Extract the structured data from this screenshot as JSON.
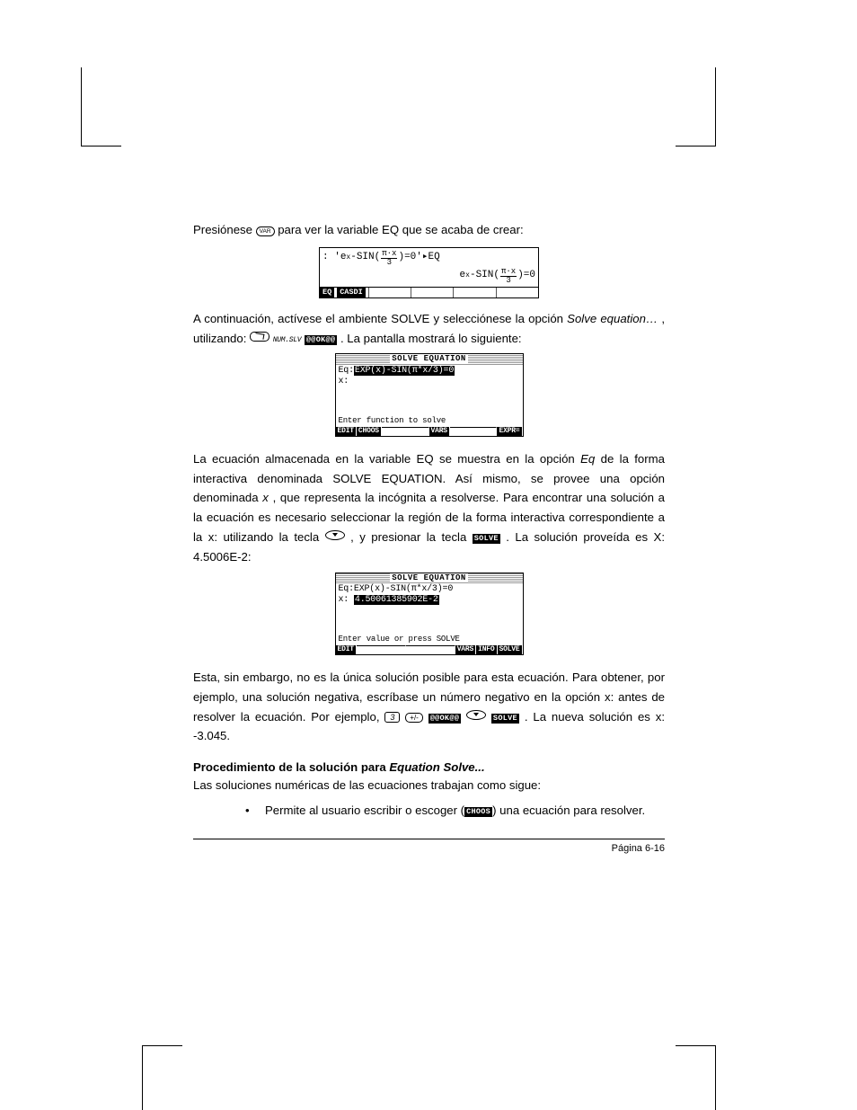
{
  "page_number": "Página 6-16",
  "colors": {
    "text": "#000000",
    "bg": "#ffffff"
  },
  "font": {
    "body_size_pt": 10,
    "family": "Verdana"
  },
  "p1": {
    "pre": "Presiónese ",
    "key": "VAR",
    "post": " para ver la variable EQ que se acaba de crear:"
  },
  "calc1": {
    "row1_lead": ": '",
    "row1_e": "e",
    "row1_sin": "-SIN",
    "row1_frac_num": "π·x",
    "row1_frac_den": "3",
    "row1_tail": "=0'▸EQ",
    "row2_e": "e",
    "row2_sin": "-SIN",
    "row2_frac_num": "π·x",
    "row2_frac_den": "3",
    "row2_tail": "=0",
    "menu": [
      "EQ",
      "CASDI"
    ]
  },
  "p2": {
    "t1": "A continuación, actívese el ambiente SOLVE y selecciónese la opción ",
    "solve": "Solve equation…",
    "t2": ", utilizando:  ",
    "numslv": "NUM.SLV",
    "ok": "@@OK@@",
    "t3": ". La pantalla mostrará lo siguiente:"
  },
  "calc2": {
    "title": "SOLVE EQUATION",
    "eq_label": "Eq:",
    "eq_value": "EXP(x)-SIN(π*x/3)=0",
    "x_label": "x:",
    "help": "Enter function to solve",
    "menu": [
      "EDIT",
      "CHOOS",
      "",
      "VARS",
      "",
      "EXPR="
    ]
  },
  "p3": {
    "t1": "La ecuación almacenada en la variable EQ se muestra en la opción ",
    "eq": "Eq",
    "t2": " de la forma interactiva denominada SOLVE EQUATION.  Así mismo, se provee una opción denominada ",
    "x": "x",
    "t3": ", que representa la incógnita a resolverse.   Para encontrar una solución a la ecuación es necesario seleccionar la región de la forma interactiva correspondiente a la x: utilizando la tecla ",
    "t4": " , y presionar la tecla ",
    "solve": "SOLVE",
    "t5": ".  La solución proveída es X: 4.5006E-2:"
  },
  "calc3": {
    "title": "SOLVE EQUATION",
    "eq_label": "Eq:",
    "eq_value": "EXP(x)-SIN(π*x/3)=0",
    "x_label": "x: ",
    "x_value": "4.50061385902E-2",
    "help": "Enter value or press SOLVE",
    "menu": [
      "EDIT",
      "",
      "",
      "VARS",
      "INFO",
      "SOLVE"
    ]
  },
  "p4": {
    "t1": "Esta, sin embargo, no es la única solución posible para esta ecuación.  Para obtener, por ejemplo, una solución negativa, escríbase un número negativo en la opción x: antes de resolver la ecuación.  Por ejemplo, ",
    "k3": "3",
    "kpm": "+/-",
    "ok": "@@OK@@",
    "solve": "SOLVE",
    "t2": ".  La nueva solución es x: -3.045."
  },
  "heading": {
    "plain": "Procedimiento de la solución para ",
    "ital": "Equation Solve..."
  },
  "p5": "Las soluciones numéricas de las ecuaciones trabajan como sigue:",
  "bullet": {
    "t1": "Permite al usuario escribir o  escoger (",
    "choos": "CHOOS",
    "t2": ") una ecuación para resolver."
  }
}
